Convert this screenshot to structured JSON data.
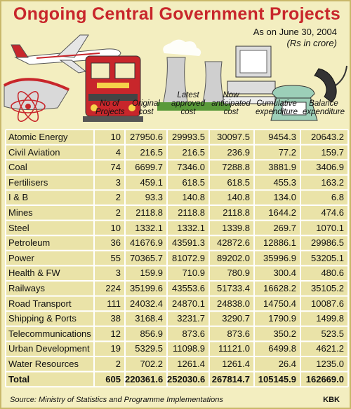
{
  "title": "Ongoing Central Government Projects",
  "subtitle_date": "As on June 30, 2004",
  "subtitle_unit": "(Rs in crore)",
  "source": "Source: Ministry of Statistics and Programme Implementations",
  "credit": "KBK",
  "colors": {
    "title": "#c8262b",
    "background": "#f3eec0",
    "table_bg": "#eae3a8",
    "grid": "#ffffff"
  },
  "chart_data": {
    "type": "table",
    "columns": [
      "",
      "No of Projects",
      "Original cost",
      "Latest approved cost",
      "Now anticipated cost",
      "Cumulative expenditure",
      "Balance expenditure"
    ],
    "rows": [
      {
        "category": "Atomic Energy",
        "projects": "10",
        "original": "27950.6",
        "latest": "29993.5",
        "anticipated": "30097.5",
        "cumulative": "9454.3",
        "balance": "20643.2"
      },
      {
        "category": "Civil Aviation",
        "projects": "4",
        "original": "216.5",
        "latest": "216.5",
        "anticipated": "236.9",
        "cumulative": "77.2",
        "balance": "159.7"
      },
      {
        "category": "Coal",
        "projects": "74",
        "original": "6699.7",
        "latest": "7346.0",
        "anticipated": "7288.8",
        "cumulative": "3881.9",
        "balance": "3406.9"
      },
      {
        "category": "Fertilisers",
        "projects": "3",
        "original": "459.1",
        "latest": "618.5",
        "anticipated": "618.5",
        "cumulative": "455.3",
        "balance": "163.2"
      },
      {
        "category": "I & B",
        "projects": "2",
        "original": "93.3",
        "latest": "140.8",
        "anticipated": "140.8",
        "cumulative": "134.0",
        "balance": "6.8"
      },
      {
        "category": "Mines",
        "projects": "2",
        "original": "2118.8",
        "latest": "2118.8",
        "anticipated": "2118.8",
        "cumulative": "1644.2",
        "balance": "474.6"
      },
      {
        "category": "Steel",
        "projects": "10",
        "original": "1332.1",
        "latest": "1332.1",
        "anticipated": "1339.8",
        "cumulative": "269.7",
        "balance": "1070.1"
      },
      {
        "category": "Petroleum",
        "projects": "36",
        "original": "41676.9",
        "latest": "43591.3",
        "anticipated": "42872.6",
        "cumulative": "12886.1",
        "balance": "29986.5"
      },
      {
        "category": "Power",
        "projects": "55",
        "original": "70365.7",
        "latest": "81072.9",
        "anticipated": "89202.0",
        "cumulative": "35996.9",
        "balance": "53205.1"
      },
      {
        "category": "Health & FW",
        "projects": "3",
        "original": "159.9",
        "latest": "710.9",
        "anticipated": "780.9",
        "cumulative": "300.4",
        "balance": "480.6"
      },
      {
        "category": "Railways",
        "projects": "224",
        "original": "35199.6",
        "latest": "43553.6",
        "anticipated": "51733.4",
        "cumulative": "16628.2",
        "balance": "35105.2"
      },
      {
        "category": "Road Transport",
        "projects": "111",
        "original": "24032.4",
        "latest": "24870.1",
        "anticipated": "24838.0",
        "cumulative": "14750.4",
        "balance": "10087.6"
      },
      {
        "category": "Shipping & Ports",
        "projects": "38",
        "original": "3168.4",
        "latest": "3231.7",
        "anticipated": "3290.7",
        "cumulative": "1790.9",
        "balance": "1499.8"
      },
      {
        "category": "Telecommunications",
        "projects": "12",
        "original": "856.9",
        "latest": "873.6",
        "anticipated": "873.6",
        "cumulative": "350.2",
        "balance": "523.5"
      },
      {
        "category": "Urban Development",
        "projects": "19",
        "original": "5329.5",
        "latest": "11098.9",
        "anticipated": "11121.0",
        "cumulative": "6499.8",
        "balance": "4621.2"
      },
      {
        "category": "Water Resources",
        "projects": "2",
        "original": "702.2",
        "latest": "1261.4",
        "anticipated": "1261.4",
        "cumulative": "26.4",
        "balance": "1235.0"
      },
      {
        "category": "Total",
        "projects": "605",
        "original": "220361.6",
        "latest": "252030.6",
        "anticipated": "267814.7",
        "cumulative": "105145.9",
        "balance": "162669.0"
      }
    ]
  }
}
